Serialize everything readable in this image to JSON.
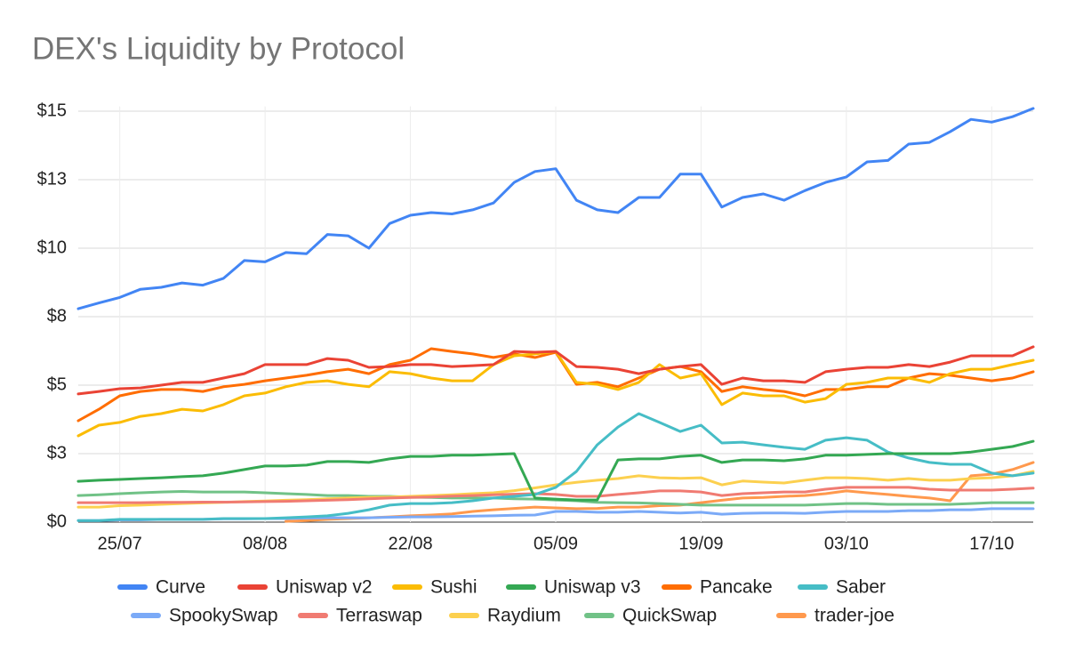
{
  "chart_data": {
    "type": "line",
    "title": "DEX's Liquidity by Protocol",
    "categories": [
      null,
      null,
      "25/07",
      null,
      null,
      null,
      null,
      null,
      null,
      "08/08",
      null,
      null,
      null,
      null,
      null,
      null,
      "22/08",
      null,
      null,
      null,
      null,
      null,
      null,
      "05/09",
      null,
      null,
      null,
      null,
      null,
      null,
      "19/09",
      null,
      null,
      null,
      null,
      null,
      null,
      "03/10",
      null,
      null,
      null,
      null,
      null,
      null,
      "17/10",
      null,
      null
    ],
    "ylim": [
      0,
      15.5
    ],
    "yticks": [
      {
        "value": 0,
        "label": "$0"
      },
      {
        "value": 2.5,
        "label": "$3"
      },
      {
        "value": 5,
        "label": "$5"
      },
      {
        "value": 7.5,
        "label": "$8"
      },
      {
        "value": 10,
        "label": "$10"
      },
      {
        "value": 12.5,
        "label": "$13"
      },
      {
        "value": 15,
        "label": "$15"
      }
    ],
    "grid": true,
    "legend": "bottom",
    "series": [
      {
        "name": "Curve",
        "color": "#4285f4",
        "values": [
          7.79,
          8.0,
          8.2,
          8.5,
          8.57,
          8.73,
          8.65,
          8.9,
          9.55,
          9.5,
          9.84,
          9.8,
          10.5,
          10.45,
          10.0,
          10.9,
          11.2,
          11.3,
          11.25,
          11.4,
          11.65,
          12.4,
          12.8,
          12.9,
          11.75,
          11.4,
          11.3,
          11.85,
          11.85,
          12.7,
          12.7,
          11.5,
          11.85,
          11.98,
          11.75,
          12.1,
          12.4,
          12.6,
          13.15,
          13.2,
          13.8,
          13.86,
          14.25,
          14.7,
          14.6,
          14.8,
          15.1
        ]
      },
      {
        "name": "Uniswap v2",
        "color": "#ea4335",
        "values": [
          4.68,
          4.77,
          4.87,
          4.9,
          5.0,
          5.1,
          5.1,
          5.26,
          5.42,
          5.75,
          5.75,
          5.75,
          5.97,
          5.91,
          5.65,
          5.68,
          5.75,
          5.75,
          5.68,
          5.71,
          5.75,
          6.23,
          6.2,
          6.23,
          5.68,
          5.65,
          5.58,
          5.42,
          5.58,
          5.68,
          5.75,
          5.03,
          5.26,
          5.16,
          5.16,
          5.1,
          5.49,
          5.58,
          5.65,
          5.65,
          5.75,
          5.68,
          5.84,
          6.07,
          6.07,
          6.07,
          6.4
        ]
      },
      {
        "name": "Sushi",
        "color": "#fbbc04",
        "values": [
          3.15,
          3.54,
          3.64,
          3.86,
          3.96,
          4.12,
          4.06,
          4.29,
          4.61,
          4.71,
          4.94,
          5.1,
          5.16,
          5.03,
          4.94,
          5.49,
          5.42,
          5.26,
          5.16,
          5.16,
          5.75,
          6.07,
          6.14,
          6.23,
          5.1,
          5.03,
          4.84,
          5.1,
          5.75,
          5.26,
          5.42,
          4.29,
          4.71,
          4.61,
          4.61,
          4.38,
          4.51,
          5.03,
          5.1,
          5.26,
          5.26,
          5.1,
          5.42,
          5.58,
          5.58,
          5.75,
          5.91
        ]
      },
      {
        "name": "Uniswap v3",
        "color": "#34a853",
        "values": [
          1.49,
          1.53,
          1.56,
          1.59,
          1.62,
          1.66,
          1.69,
          1.79,
          1.92,
          2.05,
          2.05,
          2.08,
          2.21,
          2.21,
          2.18,
          2.31,
          2.4,
          2.4,
          2.44,
          2.44,
          2.47,
          2.5,
          0.88,
          0.84,
          0.81,
          0.81,
          2.27,
          2.31,
          2.31,
          2.4,
          2.44,
          2.18,
          2.27,
          2.27,
          2.24,
          2.31,
          2.44,
          2.44,
          2.47,
          2.5,
          2.5,
          2.5,
          2.5,
          2.56,
          2.66,
          2.76,
          2.95
        ]
      },
      {
        "name": "Pancake",
        "color": "#ff6d01",
        "values": [
          3.7,
          4.12,
          4.61,
          4.77,
          4.84,
          4.84,
          4.77,
          4.94,
          5.03,
          5.16,
          5.26,
          5.36,
          5.49,
          5.58,
          5.42,
          5.75,
          5.91,
          6.33,
          6.23,
          6.14,
          6.01,
          6.14,
          6.01,
          6.2,
          5.03,
          5.1,
          4.94,
          5.26,
          5.58,
          5.68,
          5.49,
          4.77,
          4.94,
          4.84,
          4.77,
          4.61,
          4.84,
          4.84,
          4.94,
          4.94,
          5.26,
          5.42,
          5.36,
          5.26,
          5.16,
          5.26,
          5.49
        ]
      },
      {
        "name": "Saber",
        "color": "#46bdc6",
        "values": [
          0.06,
          0.06,
          0.1,
          0.1,
          0.1,
          0.1,
          0.1,
          0.13,
          0.13,
          0.13,
          0.16,
          0.19,
          0.23,
          0.32,
          0.45,
          0.62,
          0.68,
          0.68,
          0.71,
          0.78,
          0.88,
          0.94,
          1.01,
          1.27,
          1.85,
          2.82,
          3.47,
          3.96,
          3.64,
          3.31,
          3.54,
          2.89,
          2.92,
          2.82,
          2.73,
          2.66,
          2.99,
          3.08,
          2.99,
          2.56,
          2.34,
          2.18,
          2.11,
          2.11,
          1.79,
          1.69,
          1.79
        ]
      },
      {
        "name": "SpookySwap",
        "color": "#7baaf7",
        "values": [
          0.06,
          0.06,
          0.08,
          0.08,
          0.1,
          0.1,
          0.1,
          0.12,
          0.12,
          0.13,
          0.13,
          0.15,
          0.16,
          0.16,
          0.16,
          0.18,
          0.19,
          0.19,
          0.2,
          0.22,
          0.23,
          0.25,
          0.26,
          0.39,
          0.39,
          0.36,
          0.36,
          0.39,
          0.36,
          0.33,
          0.36,
          0.29,
          0.32,
          0.33,
          0.33,
          0.32,
          0.36,
          0.39,
          0.39,
          0.39,
          0.42,
          0.42,
          0.45,
          0.45,
          0.49,
          0.49,
          0.49
        ]
      },
      {
        "name": "Terraswap",
        "color": "#f07b72",
        "values": [
          0.71,
          0.71,
          0.71,
          0.71,
          0.72,
          0.72,
          0.73,
          0.73,
          0.74,
          0.75,
          0.76,
          0.78,
          0.8,
          0.82,
          0.85,
          0.88,
          0.9,
          0.92,
          0.95,
          0.97,
          1.0,
          1.02,
          1.04,
          1.01,
          0.94,
          0.94,
          1.01,
          1.07,
          1.14,
          1.14,
          1.1,
          0.97,
          1.04,
          1.07,
          1.1,
          1.1,
          1.2,
          1.27,
          1.27,
          1.27,
          1.27,
          1.2,
          1.17,
          1.17,
          1.17,
          1.2,
          1.24
        ]
      },
      {
        "name": "Raydium",
        "color": "#fcd04f",
        "values": [
          0.55,
          0.55,
          0.6,
          0.62,
          0.65,
          0.68,
          0.7,
          0.72,
          0.75,
          0.77,
          0.8,
          0.82,
          0.85,
          0.88,
          0.9,
          0.92,
          0.94,
          0.97,
          1.0,
          1.04,
          1.07,
          1.15,
          1.25,
          1.36,
          1.45,
          1.53,
          1.59,
          1.69,
          1.62,
          1.6,
          1.62,
          1.36,
          1.5,
          1.46,
          1.43,
          1.53,
          1.62,
          1.62,
          1.59,
          1.53,
          1.59,
          1.53,
          1.53,
          1.59,
          1.62,
          1.69,
          1.85
        ]
      },
      {
        "name": "QuickSwap",
        "color": "#71c287",
        "values": [
          0.97,
          1.0,
          1.04,
          1.07,
          1.1,
          1.12,
          1.1,
          1.1,
          1.1,
          1.07,
          1.04,
          1.01,
          0.97,
          0.97,
          0.94,
          0.94,
          0.91,
          0.9,
          0.88,
          0.88,
          0.88,
          0.85,
          0.84,
          0.81,
          0.78,
          0.72,
          0.71,
          0.7,
          0.68,
          0.65,
          0.62,
          0.62,
          0.62,
          0.62,
          0.62,
          0.62,
          0.65,
          0.68,
          0.68,
          0.65,
          0.65,
          0.65,
          0.65,
          0.68,
          0.71,
          0.71,
          0.71
        ]
      },
      {
        "name": "trader-joe",
        "color": "#ff994d",
        "values": [
          null,
          null,
          null,
          null,
          null,
          null,
          null,
          null,
          null,
          null,
          0.03,
          0.06,
          0.1,
          0.13,
          0.16,
          0.19,
          0.23,
          0.26,
          0.3,
          0.39,
          0.45,
          0.5,
          0.55,
          0.52,
          0.49,
          0.5,
          0.55,
          0.55,
          0.6,
          0.62,
          0.71,
          0.8,
          0.88,
          0.9,
          0.94,
          0.97,
          1.04,
          1.14,
          1.07,
          1.01,
          0.94,
          0.88,
          0.78,
          1.69,
          1.75,
          1.92,
          2.18
        ]
      }
    ]
  }
}
